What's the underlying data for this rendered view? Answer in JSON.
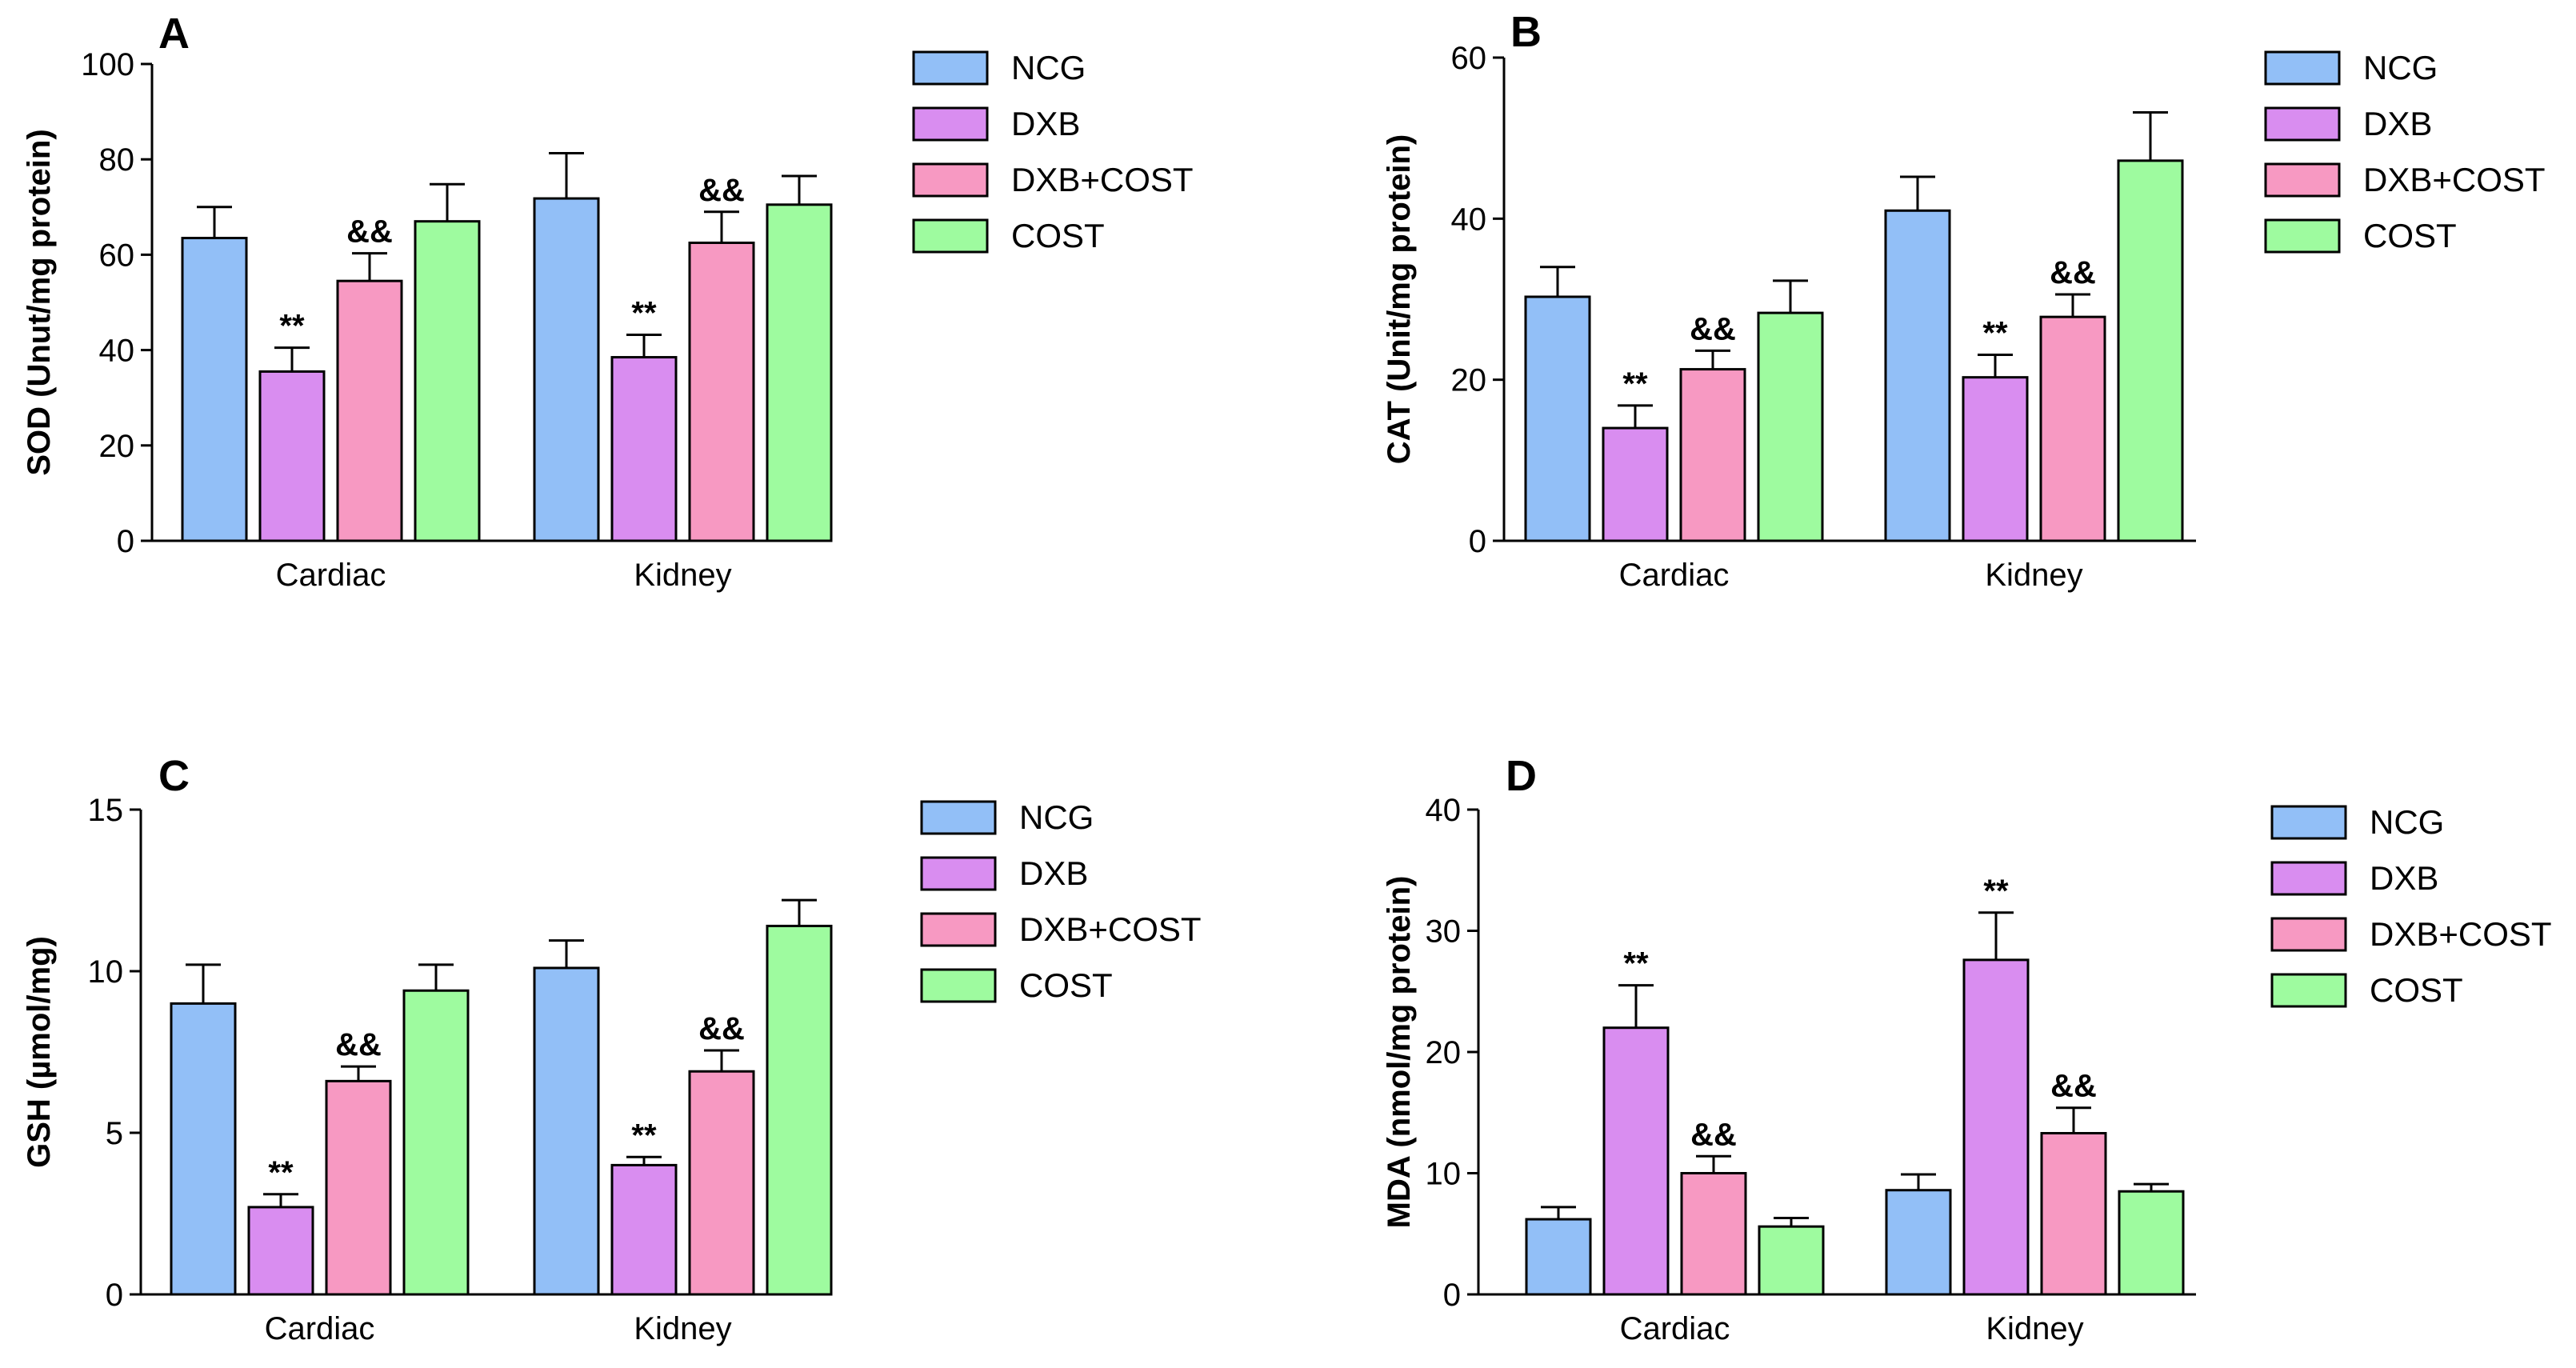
{
  "chart_data": [
    {
      "type": "bar",
      "panel": "A",
      "ylabel": "SOD (Unut/mg protein)",
      "ylim": [
        0,
        100
      ],
      "yticks": [
        "0",
        "20",
        "40",
        "60",
        "80",
        "100"
      ],
      "categories": [
        "Cardiac",
        "Kidney"
      ],
      "legend": [
        "NCG",
        "DXB",
        "DXB+COST",
        "COST"
      ],
      "series": [
        {
          "name": "NCG",
          "color": "#92BFF7",
          "values": [
            63.5,
            71.8
          ],
          "errors": [
            6.5,
            9.5
          ],
          "annotations": [
            "",
            ""
          ]
        },
        {
          "name": "DXB",
          "color": "#D98DF0",
          "values": [
            35.5,
            38.5
          ],
          "errors": [
            5.0,
            4.7
          ],
          "annotations": [
            "**",
            "**"
          ]
        },
        {
          "name": "DXB+COST",
          "color": "#F799C2",
          "values": [
            54.5,
            62.5
          ],
          "errors": [
            5.8,
            6.5
          ],
          "annotations": [
            "&&",
            "&&"
          ]
        },
        {
          "name": "COST",
          "color": "#9EFB9F",
          "values": [
            67.0,
            70.5
          ],
          "errors": [
            7.8,
            6.0
          ],
          "annotations": [
            "",
            ""
          ]
        }
      ]
    },
    {
      "type": "bar",
      "panel": "B",
      "ylabel": "CAT (Unit/mg protein)",
      "ylim": [
        0,
        60
      ],
      "yticks": [
        "0",
        "20",
        "40",
        "60"
      ],
      "categories": [
        "Cardiac",
        "Kidney"
      ],
      "legend": [
        "NCG",
        "DXB",
        "DXB+COST",
        "COST"
      ],
      "series": [
        {
          "name": "NCG",
          "color": "#92BFF7",
          "values": [
            30.3,
            41.0
          ],
          "errors": [
            3.7,
            4.2
          ],
          "annotations": [
            "",
            ""
          ]
        },
        {
          "name": "DXB",
          "color": "#D98DF0",
          "values": [
            14.0,
            20.3
          ],
          "errors": [
            2.8,
            2.8
          ],
          "annotations": [
            "**",
            "**"
          ]
        },
        {
          "name": "DXB+COST",
          "color": "#F799C2",
          "values": [
            21.3,
            27.8
          ],
          "errors": [
            2.3,
            2.8
          ],
          "annotations": [
            "&&",
            "&&"
          ]
        },
        {
          "name": "COST",
          "color": "#9EFB9F",
          "values": [
            28.3,
            47.2
          ],
          "errors": [
            4.0,
            6.0
          ],
          "annotations": [
            "",
            ""
          ]
        }
      ]
    },
    {
      "type": "bar",
      "panel": "C",
      "ylabel": "GSH (µmol/mg)",
      "ylim": [
        0,
        15
      ],
      "yticks": [
        "0",
        "5",
        "10",
        "15"
      ],
      "categories": [
        "Cardiac",
        "Kidney"
      ],
      "legend": [
        "NCG",
        "DXB",
        "DXB+COST",
        "COST"
      ],
      "series": [
        {
          "name": "NCG",
          "color": "#92BFF7",
          "values": [
            9.0,
            10.1
          ],
          "errors": [
            1.2,
            0.85
          ],
          "annotations": [
            "",
            ""
          ]
        },
        {
          "name": "DXB",
          "color": "#D98DF0",
          "values": [
            2.7,
            4.0
          ],
          "errors": [
            0.4,
            0.25
          ],
          "annotations": [
            "**",
            "**"
          ]
        },
        {
          "name": "DXB+COST",
          "color": "#F799C2",
          "values": [
            6.6,
            6.9
          ],
          "errors": [
            0.45,
            0.65
          ],
          "annotations": [
            "&&",
            "&&"
          ]
        },
        {
          "name": "COST",
          "color": "#9EFB9F",
          "values": [
            9.4,
            11.4
          ],
          "errors": [
            0.8,
            0.8
          ],
          "annotations": [
            "",
            ""
          ]
        }
      ]
    },
    {
      "type": "bar",
      "panel": "D",
      "ylabel": "MDA (nmol/mg protein)",
      "ylim": [
        0,
        40
      ],
      "yticks": [
        "0",
        "10",
        "20",
        "30",
        "40"
      ],
      "categories": [
        "Cardiac",
        "Kidney"
      ],
      "legend": [
        "NCG",
        "DXB",
        "DXB+COST",
        "COST"
      ],
      "series": [
        {
          "name": "NCG",
          "color": "#92BFF7",
          "values": [
            6.2,
            8.6
          ],
          "errors": [
            1.0,
            1.3
          ],
          "annotations": [
            "",
            ""
          ]
        },
        {
          "name": "DXB",
          "color": "#D98DF0",
          "values": [
            22.0,
            27.6
          ],
          "errors": [
            3.5,
            3.9
          ],
          "annotations": [
            "**",
            "**"
          ]
        },
        {
          "name": "DXB+COST",
          "color": "#F799C2",
          "values": [
            10.0,
            13.3
          ],
          "errors": [
            1.4,
            2.1
          ],
          "annotations": [
            "&&",
            "&&"
          ]
        },
        {
          "name": "COST",
          "color": "#9EFB9F",
          "values": [
            5.6,
            8.5
          ],
          "errors": [
            0.7,
            0.6
          ],
          "annotations": [
            "",
            ""
          ]
        }
      ]
    }
  ]
}
